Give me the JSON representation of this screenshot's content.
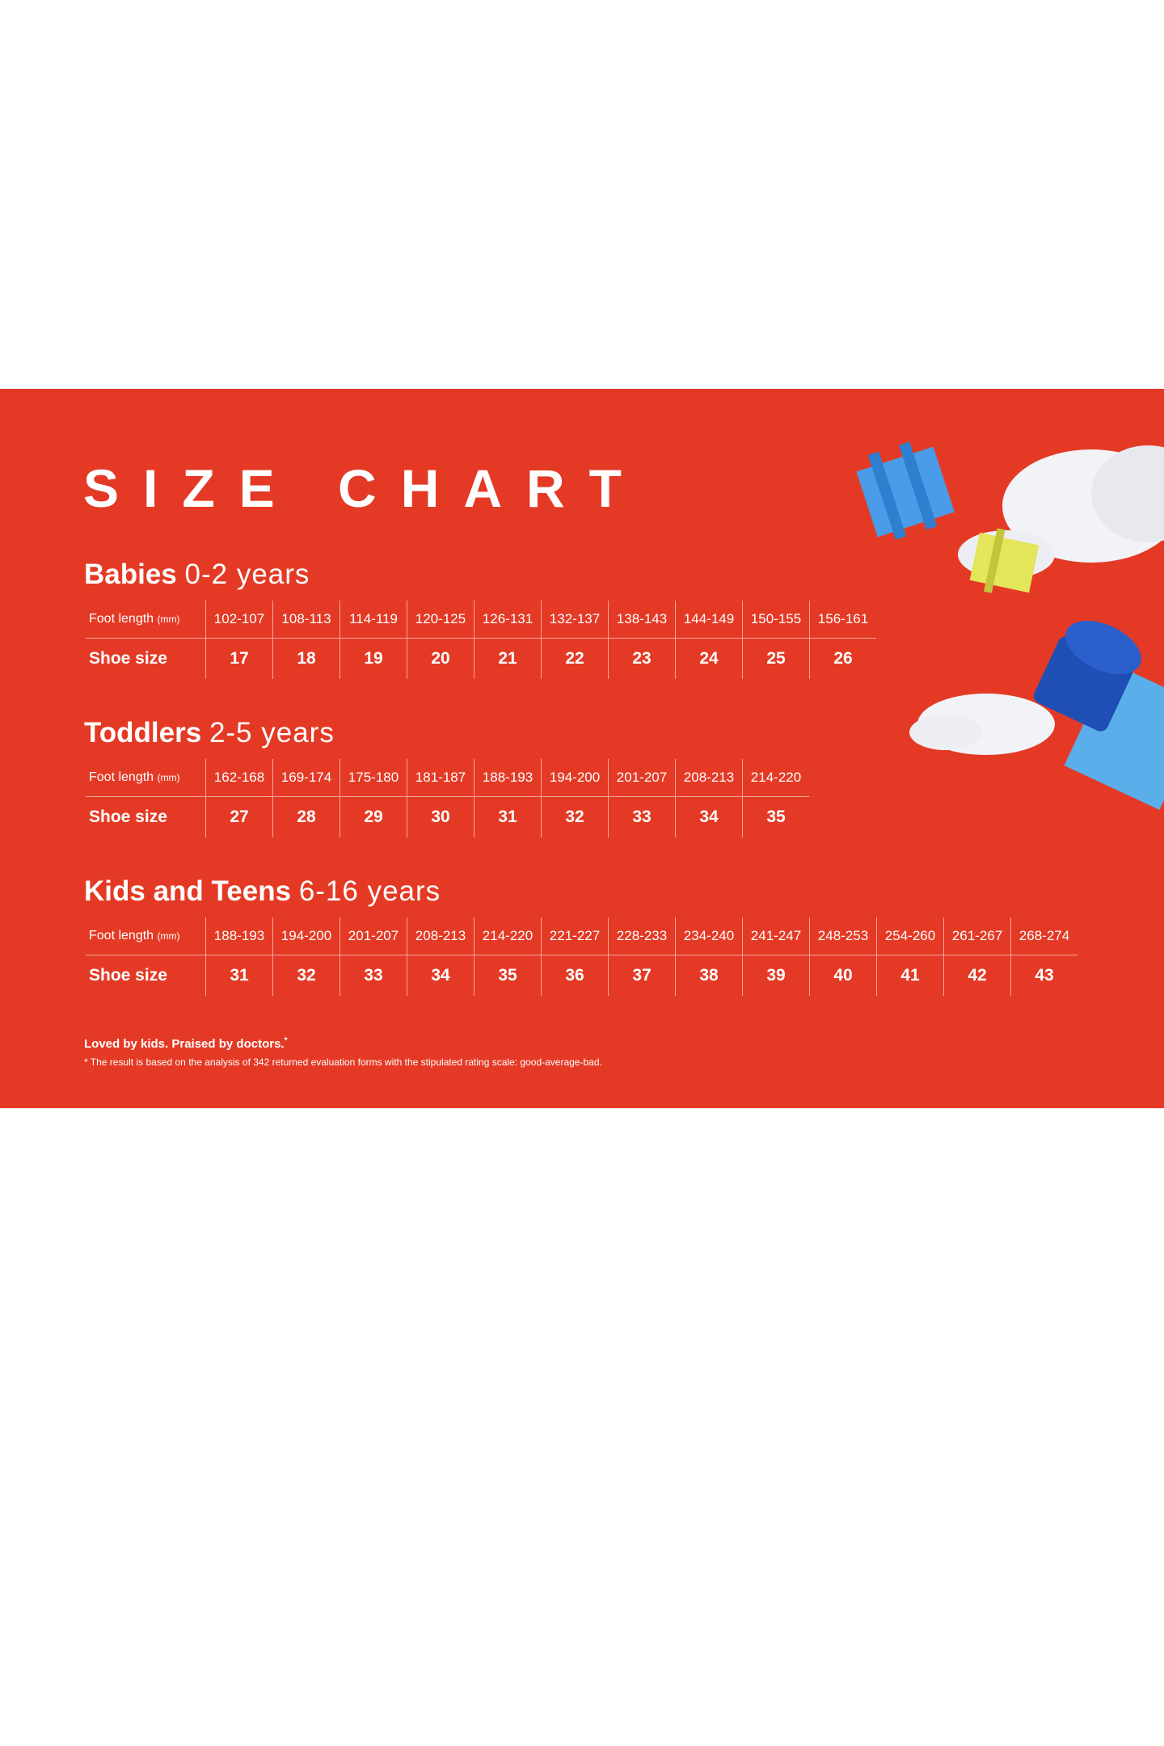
{
  "colors": {
    "background": "#e43a25",
    "text": "#ffffff",
    "block_blue": "#4a9be8",
    "block_yellow": "#e3e55a",
    "cloud": "#f2f3f7"
  },
  "title": "SIZE CHART",
  "row_labels": {
    "foot_length": "Foot length",
    "unit": "(mm)",
    "shoe_size": "Shoe size"
  },
  "sections": [
    {
      "name": "Babies",
      "range": "0-2 years",
      "foot_length": [
        "102-107",
        "108-113",
        "114-119",
        "120-125",
        "126-131",
        "132-137",
        "138-143",
        "144-149",
        "150-155",
        "156-161"
      ],
      "shoe_size": [
        "17",
        "18",
        "19",
        "20",
        "21",
        "22",
        "23",
        "24",
        "25",
        "26"
      ]
    },
    {
      "name": "Toddlers",
      "range": "2-5 years",
      "foot_length": [
        "162-168",
        "169-174",
        "175-180",
        "181-187",
        "188-193",
        "194-200",
        "201-207",
        "208-213",
        "214-220"
      ],
      "shoe_size": [
        "27",
        "28",
        "29",
        "30",
        "31",
        "32",
        "33",
        "34",
        "35"
      ]
    },
    {
      "name": "Kids and Teens",
      "range": "6-16 years",
      "foot_length": [
        "188-193",
        "194-200",
        "201-207",
        "208-213",
        "214-220",
        "221-227",
        "228-233",
        "234-240",
        "241-247",
        "248-253",
        "254-260",
        "261-267",
        "268-274"
      ],
      "shoe_size": [
        "31",
        "32",
        "33",
        "34",
        "35",
        "36",
        "37",
        "38",
        "39",
        "40",
        "41",
        "42",
        "43"
      ]
    }
  ],
  "footer": {
    "tagline": "Loved by kids. Praised by doctors.",
    "tagline_mark": "*",
    "note": "* The result is based on the analysis of 342 returned evaluation forms with the stipulated rating scale: good-average-bad."
  }
}
